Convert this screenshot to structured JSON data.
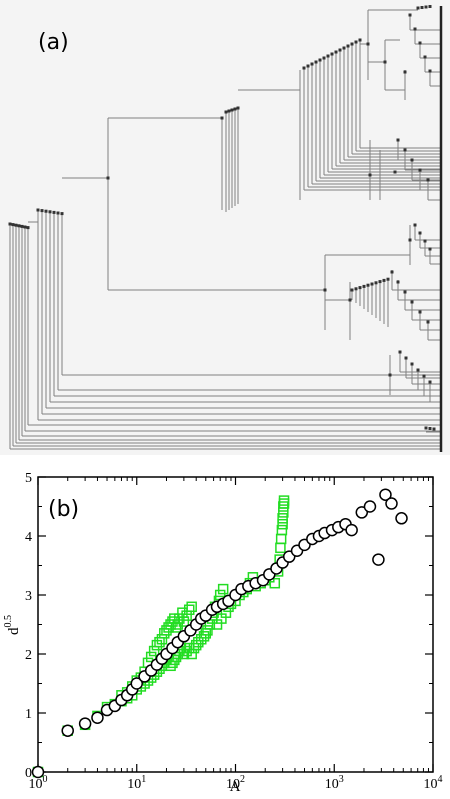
{
  "panel_a": {
    "label": "(a)",
    "edge_color": "#808080",
    "node_color": "#333333"
  },
  "panel_b": {
    "label": "(b)"
  },
  "chart_data": [
    {
      "type": "diagram",
      "title": "",
      "label": "(a)"
    },
    {
      "type": "scatter",
      "label": "(b)",
      "title": "",
      "xlabel": "A",
      "ylabel": "d",
      "ylabel_exponent": "0.5",
      "xscale": "log",
      "xlim": [
        1,
        10000
      ],
      "ylim": [
        0,
        5
      ],
      "x_ticks": [
        {
          "value": 1,
          "base": "10",
          "exp": "0"
        },
        {
          "value": 10,
          "base": "10",
          "exp": "1"
        },
        {
          "value": 100,
          "base": "10",
          "exp": "2"
        },
        {
          "value": 1000,
          "base": "10",
          "exp": "3"
        },
        {
          "value": 10000,
          "base": "10",
          "exp": "4"
        }
      ],
      "y_ticks": [
        "0",
        "1",
        "2",
        "3",
        "4",
        "5"
      ],
      "grid": false,
      "series": [
        {
          "marker": "square",
          "color": "#22dd22",
          "x": [
            1,
            2,
            3,
            4,
            5,
            6,
            7,
            7,
            8,
            8,
            9,
            9,
            10,
            10,
            11,
            11,
            12,
            12,
            13,
            13,
            14,
            14,
            15,
            15,
            16,
            16,
            17,
            17,
            18,
            18,
            19,
            19,
            20,
            20,
            21,
            21,
            22,
            22,
            23,
            23,
            24,
            24,
            25,
            25,
            26,
            26,
            27,
            27,
            28,
            29,
            30,
            30,
            32,
            32,
            34,
            34,
            36,
            36,
            38,
            40,
            42,
            45,
            48,
            50,
            52,
            55,
            58,
            60,
            62,
            65,
            68,
            70,
            72,
            75,
            80,
            85,
            90,
            100,
            110,
            120,
            130,
            140,
            150,
            160,
            180,
            200,
            220,
            250,
            270,
            280,
            285,
            290,
            295,
            300,
            300,
            305,
            305,
            310,
            310
          ],
          "y": [
            0.0,
            0.7,
            0.8,
            0.95,
            1.1,
            1.15,
            1.2,
            1.3,
            1.25,
            1.35,
            1.3,
            1.45,
            1.4,
            1.55,
            1.45,
            1.6,
            1.5,
            1.7,
            1.55,
            1.85,
            1.6,
            1.95,
            1.65,
            2.05,
            1.7,
            2.15,
            1.75,
            2.2,
            1.8,
            2.25,
            1.85,
            2.35,
            1.9,
            2.4,
            1.95,
            2.45,
            1.8,
            2.5,
            1.85,
            2.55,
            1.9,
            2.6,
            1.95,
            2.45,
            2.0,
            2.5,
            2.05,
            2.6,
            2.1,
            2.7,
            2.0,
            2.55,
            2.05,
            2.65,
            2.1,
            2.75,
            2.0,
            2.8,
            2.1,
            2.15,
            2.2,
            2.25,
            2.3,
            2.35,
            2.4,
            2.5,
            2.6,
            2.7,
            2.8,
            2.5,
            2.9,
            3.0,
            2.6,
            3.1,
            2.7,
            2.8,
            2.85,
            2.9,
            3.0,
            3.05,
            3.1,
            3.2,
            3.3,
            3.15,
            3.2,
            3.25,
            3.3,
            3.2,
            3.4,
            3.6,
            3.8,
            3.95,
            4.1,
            4.2,
            4.3,
            4.4,
            4.5,
            4.55,
            4.6
          ]
        },
        {
          "marker": "circle",
          "color": "#000000",
          "x": [
            1,
            2,
            3,
            4,
            5,
            6,
            7,
            8,
            9,
            10,
            12,
            14,
            16,
            18,
            20,
            23,
            26,
            30,
            35,
            40,
            45,
            50,
            58,
            65,
            75,
            85,
            100,
            115,
            135,
            160,
            190,
            220,
            260,
            300,
            350,
            420,
            500,
            600,
            700,
            800,
            950,
            1100,
            1300,
            1500,
            1900,
            2300,
            2800,
            3300,
            3800,
            4800
          ],
          "y": [
            0.0,
            0.7,
            0.82,
            0.92,
            1.05,
            1.12,
            1.22,
            1.3,
            1.4,
            1.5,
            1.62,
            1.72,
            1.82,
            1.92,
            2.0,
            2.1,
            2.2,
            2.3,
            2.4,
            2.5,
            2.6,
            2.65,
            2.75,
            2.8,
            2.85,
            2.9,
            3.0,
            3.1,
            3.15,
            3.2,
            3.25,
            3.35,
            3.45,
            3.55,
            3.65,
            3.75,
            3.85,
            3.95,
            4.0,
            4.05,
            4.1,
            4.15,
            4.2,
            4.1,
            4.4,
            4.5,
            3.6,
            4.7,
            4.55,
            4.3
          ]
        }
      ]
    }
  ]
}
